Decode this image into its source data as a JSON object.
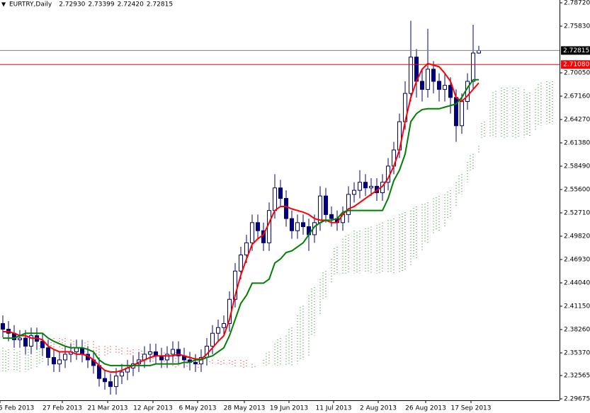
{
  "chart_data": {
    "type": "candlestick",
    "header": {
      "symbol": "EURTRY,Daily",
      "values": [
        "2.72930",
        "2.73399",
        "2.72420",
        "2.72815"
      ]
    },
    "x_labels": [
      "5 Feb 2013",
      "27 Feb 2013",
      "21 Mar 2013",
      "12 Apr 2013",
      "6 May 2013",
      "28 May 2013",
      "19 Jun 2013",
      "11 Jul 2013",
      "2 Aug 2013",
      "26 Aug 2013",
      "17 Sep 2013"
    ],
    "ylim": [
      2.295,
      2.7907
    ],
    "yticks": [
      {
        "value": 2.7872,
        "label": "2.78720"
      },
      {
        "value": 2.7583,
        "label": "2.75830"
      },
      {
        "value": 2.7005,
        "label": "2.70050"
      },
      {
        "value": 2.6716,
        "label": "2.67160"
      },
      {
        "value": 2.6427,
        "label": "2.64270"
      },
      {
        "value": 2.6138,
        "label": "2.61380"
      },
      {
        "value": 2.5849,
        "label": "2.58490"
      },
      {
        "value": 2.556,
        "label": "2.55600"
      },
      {
        "value": 2.5271,
        "label": "2.52710"
      },
      {
        "value": 2.4982,
        "label": "2.49820"
      },
      {
        "value": 2.4693,
        "label": "2.46930"
      },
      {
        "value": 2.4404,
        "label": "2.44040"
      },
      {
        "value": 2.4115,
        "label": "2.41150"
      },
      {
        "value": 2.3826,
        "label": "2.38260"
      },
      {
        "value": 2.3537,
        "label": "2.35370"
      },
      {
        "value": 2.32565,
        "label": "2.32565"
      },
      {
        "value": 2.29675,
        "label": "2.29675"
      }
    ],
    "price_lines": [
      {
        "value": 2.72815,
        "label": "2.72815",
        "color": "#808080",
        "box": "#000000"
      },
      {
        "value": 2.7108,
        "label": "2.71080",
        "color": "#ff0000",
        "box": "#ff0000"
      }
    ],
    "candles": {
      "color": "#000080",
      "open": [
        2.39,
        2.383,
        2.378,
        2.37,
        2.372,
        2.362,
        2.375,
        2.368,
        2.36,
        2.348,
        2.34,
        2.345,
        2.352,
        2.355,
        2.36,
        2.352,
        2.345,
        2.338,
        2.322,
        2.318,
        2.312,
        2.325,
        2.33,
        2.335,
        2.34,
        2.345,
        2.352,
        2.355,
        2.35,
        2.345,
        2.352,
        2.358,
        2.35,
        2.345,
        2.342,
        2.34,
        2.348,
        2.362,
        2.378,
        2.385,
        2.39,
        2.42,
        2.455,
        2.475,
        2.49,
        2.515,
        2.505,
        2.49,
        2.53,
        2.558,
        2.545,
        2.52,
        2.505,
        2.515,
        2.51,
        2.5,
        2.515,
        2.548,
        2.525,
        2.52,
        2.515,
        2.525,
        2.55,
        2.555,
        2.565,
        2.558,
        2.56,
        2.552,
        2.565,
        2.585,
        2.605,
        2.64,
        2.675,
        2.72,
        2.69,
        2.68,
        2.705,
        2.69,
        2.68,
        2.685,
        2.67,
        2.635,
        2.665,
        2.69,
        2.725
      ],
      "high": [
        2.4,
        2.393,
        2.388,
        2.382,
        2.382,
        2.385,
        2.385,
        2.378,
        2.37,
        2.358,
        2.355,
        2.362,
        2.365,
        2.37,
        2.37,
        2.362,
        2.355,
        2.348,
        2.332,
        2.328,
        2.335,
        2.34,
        2.345,
        2.35,
        2.355,
        2.362,
        2.365,
        2.365,
        2.36,
        2.362,
        2.368,
        2.368,
        2.36,
        2.355,
        2.352,
        2.358,
        2.372,
        2.388,
        2.395,
        2.4,
        2.43,
        2.465,
        2.485,
        2.5,
        2.525,
        2.525,
        2.515,
        2.54,
        2.575,
        2.568,
        2.555,
        2.53,
        2.525,
        2.525,
        2.52,
        2.525,
        2.56,
        2.558,
        2.535,
        2.53,
        2.535,
        2.56,
        2.565,
        2.58,
        2.575,
        2.57,
        2.57,
        2.575,
        2.595,
        2.615,
        2.65,
        2.69,
        2.765,
        2.73,
        2.705,
        2.755,
        2.715,
        2.7,
        2.7,
        2.695,
        2.68,
        2.675,
        2.7,
        2.76,
        2.734
      ],
      "low": [
        2.373,
        2.368,
        2.36,
        2.36,
        2.352,
        2.352,
        2.358,
        2.35,
        2.338,
        2.33,
        2.33,
        2.335,
        2.342,
        2.345,
        2.342,
        2.335,
        2.328,
        2.312,
        2.308,
        2.302,
        2.302,
        2.315,
        2.32,
        2.325,
        2.33,
        2.335,
        2.342,
        2.34,
        2.335,
        2.335,
        2.342,
        2.34,
        2.335,
        2.332,
        2.33,
        2.33,
        2.338,
        2.352,
        2.368,
        2.375,
        2.38,
        2.41,
        2.445,
        2.465,
        2.48,
        2.495,
        2.48,
        2.48,
        2.52,
        2.535,
        2.51,
        2.495,
        2.495,
        2.5,
        2.48,
        2.49,
        2.505,
        2.515,
        2.51,
        2.505,
        2.505,
        2.515,
        2.54,
        2.545,
        2.548,
        2.548,
        2.542,
        2.542,
        2.555,
        2.575,
        2.595,
        2.63,
        2.665,
        2.67,
        2.665,
        2.67,
        2.675,
        2.665,
        2.665,
        2.65,
        2.615,
        2.625,
        2.655,
        2.68,
        2.724
      ],
      "close": [
        2.383,
        2.378,
        2.37,
        2.372,
        2.362,
        2.375,
        2.368,
        2.36,
        2.348,
        2.34,
        2.345,
        2.352,
        2.355,
        2.36,
        2.352,
        2.345,
        2.338,
        2.322,
        2.318,
        2.312,
        2.325,
        2.33,
        2.335,
        2.34,
        2.345,
        2.352,
        2.355,
        2.35,
        2.345,
        2.352,
        2.358,
        2.35,
        2.345,
        2.342,
        2.34,
        2.348,
        2.362,
        2.378,
        2.385,
        2.39,
        2.42,
        2.455,
        2.475,
        2.49,
        2.515,
        2.505,
        2.49,
        2.53,
        2.558,
        2.545,
        2.52,
        2.505,
        2.515,
        2.51,
        2.5,
        2.515,
        2.548,
        2.525,
        2.52,
        2.515,
        2.525,
        2.55,
        2.555,
        2.565,
        2.558,
        2.56,
        2.552,
        2.565,
        2.585,
        2.605,
        2.64,
        2.675,
        2.72,
        2.69,
        2.68,
        2.705,
        2.69,
        2.68,
        2.685,
        2.67,
        2.635,
        2.665,
        2.69,
        2.725,
        2.728
      ]
    },
    "tenkan": {
      "color": "#ff0000",
      "values": [
        2.38,
        2.38,
        2.378,
        2.375,
        2.375,
        2.372,
        2.372,
        2.37,
        2.362,
        2.358,
        2.355,
        2.355,
        2.355,
        2.352,
        2.352,
        2.35,
        2.345,
        2.338,
        2.332,
        2.33,
        2.33,
        2.332,
        2.335,
        2.338,
        2.342,
        2.345,
        2.348,
        2.35,
        2.35,
        2.35,
        2.35,
        2.352,
        2.35,
        2.348,
        2.346,
        2.346,
        2.352,
        2.36,
        2.368,
        2.375,
        2.395,
        2.425,
        2.45,
        2.47,
        2.488,
        2.495,
        2.5,
        2.515,
        2.53,
        2.535,
        2.535,
        2.532,
        2.53,
        2.528,
        2.525,
        2.52,
        2.518,
        2.518,
        2.515,
        2.515,
        2.525,
        2.532,
        2.535,
        2.54,
        2.545,
        2.55,
        2.555,
        2.56,
        2.57,
        2.585,
        2.605,
        2.64,
        2.67,
        2.69,
        2.705,
        2.712,
        2.71,
        2.708,
        2.7,
        2.69,
        2.67,
        2.665,
        2.672,
        2.68,
        2.688
      ]
    },
    "kijun": {
      "color": "#008000",
      "values": [
        2.372,
        2.372,
        2.372,
        2.375,
        2.378,
        2.378,
        2.378,
        2.378,
        2.372,
        2.368,
        2.365,
        2.362,
        2.36,
        2.36,
        2.36,
        2.358,
        2.355,
        2.345,
        2.34,
        2.338,
        2.338,
        2.338,
        2.338,
        2.338,
        2.338,
        2.338,
        2.338,
        2.34,
        2.34,
        2.34,
        2.34,
        2.34,
        2.342,
        2.342,
        2.345,
        2.345,
        2.348,
        2.35,
        2.355,
        2.36,
        2.375,
        2.395,
        2.415,
        2.425,
        2.44,
        2.44,
        2.44,
        2.445,
        2.465,
        2.47,
        2.478,
        2.48,
        2.485,
        2.49,
        2.5,
        2.51,
        2.515,
        2.518,
        2.518,
        2.52,
        2.528,
        2.53,
        2.53,
        2.53,
        2.53,
        2.53,
        2.53,
        2.53,
        2.545,
        2.567,
        2.58,
        2.6,
        2.64,
        2.65,
        2.655,
        2.656,
        2.656,
        2.656,
        2.658,
        2.66,
        2.662,
        2.67,
        2.682,
        2.692,
        2.692
      ]
    },
    "cloud": {
      "up_color": "#008000",
      "down_color": "#cc0000",
      "span_a": [
        2.36,
        2.358,
        2.358,
        2.356,
        2.355,
        2.36,
        2.365,
        2.368,
        2.362,
        2.36,
        2.358,
        2.356,
        2.356,
        2.356,
        2.354,
        2.352,
        2.35,
        2.348,
        2.35,
        2.352,
        2.352,
        2.352,
        2.35,
        2.35,
        2.345,
        2.342,
        2.34,
        2.34,
        2.338,
        2.336,
        2.335,
        2.335,
        2.335,
        2.335,
        2.335,
        2.335,
        2.34,
        2.34,
        2.34,
        2.338,
        2.338,
        2.336,
        2.335,
        2.335,
        2.335,
        2.338,
        2.345,
        2.355,
        2.365,
        2.372,
        2.375,
        2.385,
        2.4,
        2.412,
        2.425,
        2.435,
        2.445,
        2.455,
        2.47,
        2.485,
        2.495,
        2.5,
        2.505,
        2.505,
        2.508,
        2.51,
        2.512,
        2.515,
        2.518,
        2.52,
        2.525,
        2.528,
        2.53,
        2.535,
        2.538,
        2.54,
        2.545,
        2.548,
        2.55,
        2.555,
        2.565,
        2.575,
        2.59,
        2.6,
        2.61,
        2.64,
        2.665,
        2.678,
        2.682,
        2.682,
        2.682,
        2.682,
        2.68,
        2.676,
        2.68,
        2.688,
        2.69,
        2.69
      ],
      "span_b": [
        2.33,
        2.33,
        2.33,
        2.33,
        2.33,
        2.332,
        2.335,
        2.34,
        2.372,
        2.372,
        2.372,
        2.372,
        2.37,
        2.37,
        2.368,
        2.368,
        2.368,
        2.362,
        2.362,
        2.362,
        2.362,
        2.36,
        2.36,
        2.358,
        2.358,
        2.358,
        2.358,
        2.356,
        2.356,
        2.356,
        2.356,
        2.356,
        2.354,
        2.35,
        2.348,
        2.345,
        2.345,
        2.345,
        2.345,
        2.345,
        2.345,
        2.345,
        2.345,
        2.345,
        2.34,
        2.338,
        2.338,
        2.338,
        2.338,
        2.338,
        2.338,
        2.338,
        2.34,
        2.345,
        2.35,
        2.375,
        2.4,
        2.42,
        2.44,
        2.45,
        2.452,
        2.452,
        2.452,
        2.452,
        2.452,
        2.452,
        2.452,
        2.452,
        2.452,
        2.452,
        2.452,
        2.455,
        2.46,
        2.47,
        2.48,
        2.49,
        2.5,
        2.505,
        2.51,
        2.52,
        2.535,
        2.55,
        2.565,
        2.58,
        2.6,
        2.62,
        2.62,
        2.62,
        2.62,
        2.62,
        2.62,
        2.62,
        2.62,
        2.622,
        2.63,
        2.635,
        2.637,
        2.637
      ]
    }
  }
}
